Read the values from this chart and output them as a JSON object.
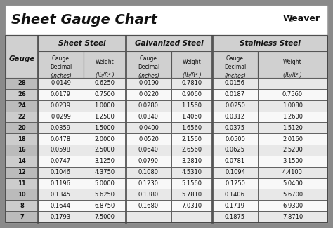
{
  "title": "Sheet Gauge Chart",
  "bg_outer": "#8a8a8a",
  "bg_inner": "#ffffff",
  "bg_header_row": "#d0d0d0",
  "bg_gauge_col": "#c8c8c8",
  "bg_data_odd": "#e8e8e8",
  "bg_data_even": "#f8f8f8",
  "border_color": "#555555",
  "text_dark": "#111111",
  "gauges": [
    28,
    26,
    24,
    22,
    20,
    18,
    16,
    14,
    12,
    11,
    10,
    8,
    7
  ],
  "sheet_steel_dec": [
    "0.0149",
    "0.0179",
    "0.0239",
    "0.0299",
    "0.0359",
    "0.0478",
    "0.0598",
    "0.0747",
    "0.1046",
    "0.1196",
    "0.1345",
    "0.1644",
    "0.1793"
  ],
  "sheet_steel_wt": [
    "0.6250",
    "0.7500",
    "1.0000",
    "1.2500",
    "1.5000",
    "2.0000",
    "2.5000",
    "3.1250",
    "4.3750",
    "5.0000",
    "5.6250",
    "6.8750",
    "7.5000"
  ],
  "galv_dec": [
    "0.0190",
    "0.0220",
    "0.0280",
    "0.0340",
    "0.0400",
    "0.0520",
    "0.0640",
    "0.0790",
    "0.1080",
    "0.1230",
    "0.1380",
    "0.1680",
    ""
  ],
  "galv_wt": [
    "0.7810",
    "0.9060",
    "1.1560",
    "1.4060",
    "1.6560",
    "2.1560",
    "2.6560",
    "3.2810",
    "4.5310",
    "5.1560",
    "5.7810",
    "7.0310",
    ""
  ],
  "sst_dec": [
    "0.0156",
    "0.0187",
    "0.0250",
    "0.0312",
    "0.0375",
    "0.0500",
    "0.0625",
    "0.0781",
    "0.1094",
    "0.1250",
    "0.1406",
    "0.1719",
    "0.1875"
  ],
  "sst_wt": [
    "",
    "0.7560",
    "1.0080",
    "1.2600",
    "1.5120",
    "2.0160",
    "2.5200",
    "3.1500",
    "4.4100",
    "5.0400",
    "5.6700",
    "6.9300",
    "7.8710"
  ],
  "fig_w": 4.74,
  "fig_h": 3.25,
  "dpi": 100
}
